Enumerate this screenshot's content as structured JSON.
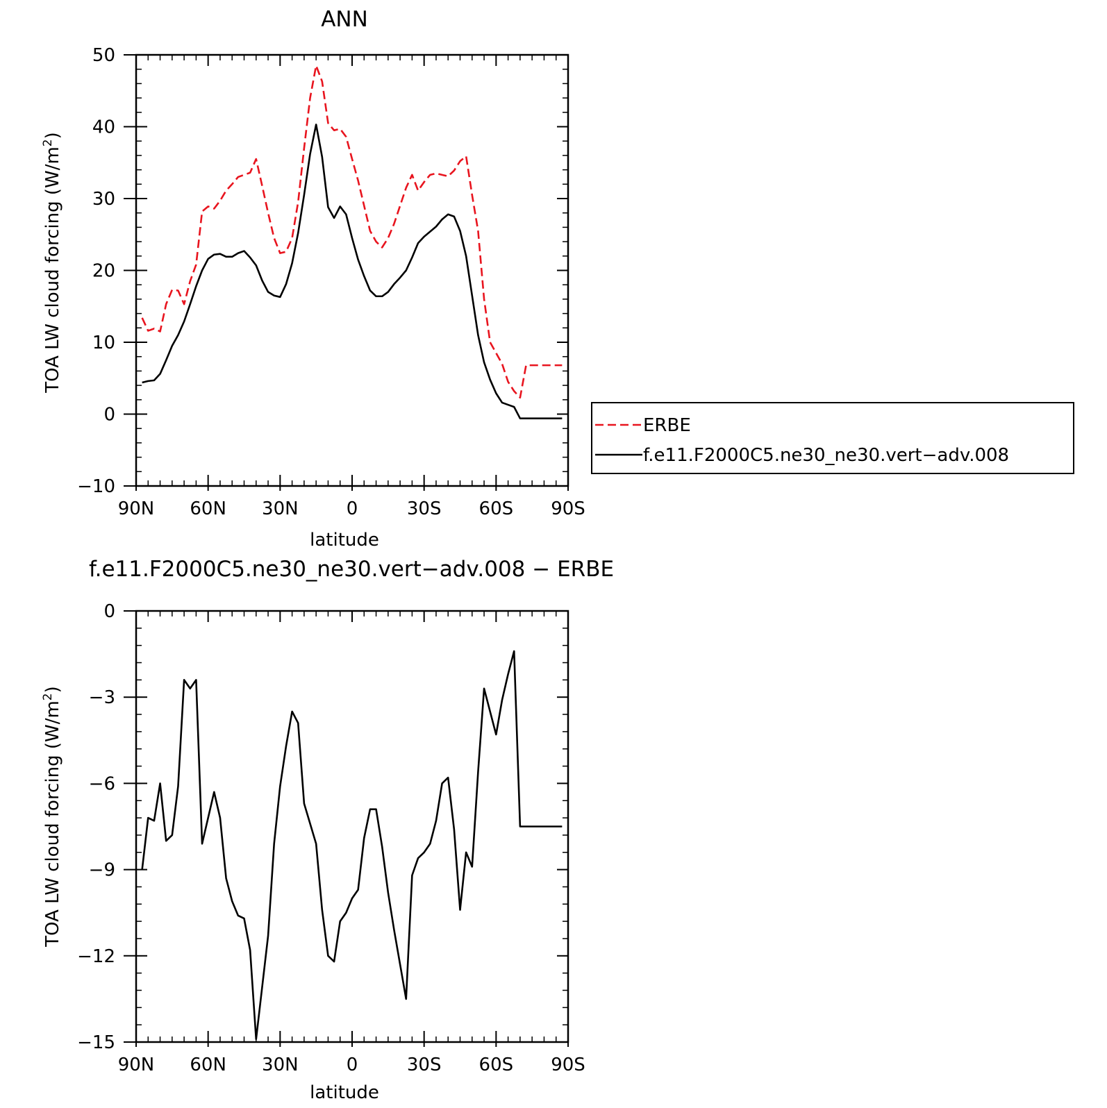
{
  "chart_data": [
    {
      "type": "line",
      "title": "ANN",
      "xlabel": "latitude",
      "ylabel": "TOA LW cloud forcing (W/m²)",
      "ylabel_parts": [
        "TOA LW cloud forcing (W/m",
        "2",
        ")"
      ],
      "xlim": [
        -90,
        90
      ],
      "ylim": [
        -10,
        50
      ],
      "xticks": [
        -90,
        -60,
        -30,
        0,
        30,
        60,
        90
      ],
      "xtick_labels": [
        "90N",
        "60N",
        "30N",
        "0",
        "30S",
        "60S",
        "90S"
      ],
      "yticks": [
        -10,
        0,
        10,
        20,
        30,
        40,
        50
      ],
      "ytick_labels": [
        "−10",
        "0",
        "10",
        "20",
        "30",
        "40",
        "50"
      ],
      "legend_position": "right",
      "series": [
        {
          "name": "ERBE",
          "color": "#e8141e",
          "dash": "dashed",
          "x": [
            -87.5,
            -85,
            -82.5,
            -80,
            -77.5,
            -75,
            -72.5,
            -70,
            -67.5,
            -65,
            -62.5,
            -60,
            -57.5,
            -55,
            -52.5,
            -50,
            -47.5,
            -45,
            -42.5,
            -40,
            -37.5,
            -35,
            -32.5,
            -30,
            -27.5,
            -25,
            -22.5,
            -20,
            -17.5,
            -15,
            -12.5,
            -10,
            -7.5,
            -5,
            -2.5,
            0,
            2.5,
            5,
            7.5,
            10,
            12.5,
            15,
            17.5,
            20,
            22.5,
            25,
            27.5,
            30,
            32.5,
            35,
            37.5,
            40,
            42.5,
            45,
            47.5,
            50,
            52.5,
            55,
            57.5,
            60,
            62.5,
            65,
            67.5,
            70,
            72.5,
            75,
            77.5,
            80,
            82.5,
            85,
            87.5
          ],
          "values": [
            13.4,
            11.6,
            11.9,
            11.5,
            15.3,
            17.3,
            17.2,
            15.3,
            18.5,
            20.8,
            28.2,
            28.9,
            28.6,
            29.7,
            31.1,
            32.0,
            33.0,
            33.3,
            33.6,
            35.5,
            31.8,
            28.0,
            24.5,
            22.4,
            22.6,
            24.5,
            29.5,
            37.0,
            44.0,
            48.5,
            46.3,
            40.5,
            39.5,
            39.7,
            38.6,
            35.5,
            32.5,
            29.0,
            25.5,
            24.0,
            23.2,
            24.5,
            26.5,
            29.0,
            31.5,
            33.3,
            31.1,
            32.3,
            33.3,
            33.5,
            33.3,
            33.1,
            33.9,
            35.2,
            35.9,
            30.5,
            25.5,
            16.0,
            10.0,
            8.5,
            7.0,
            4.5,
            3.2,
            2.3,
            6.8,
            6.8,
            6.8,
            6.8,
            6.8,
            6.8,
            6.8
          ]
        },
        {
          "name": "f.e11.F2000C5.ne30_ne30.vert−adv.008",
          "color": "#000000",
          "dash": "solid",
          "x": [
            -87.5,
            -85,
            -82.5,
            -80,
            -77.5,
            -75,
            -72.5,
            -70,
            -67.5,
            -65,
            -62.5,
            -60,
            -57.5,
            -55,
            -52.5,
            -50,
            -47.5,
            -45,
            -42.5,
            -40,
            -37.5,
            -35,
            -32.5,
            -30,
            -27.5,
            -25,
            -22.5,
            -20,
            -17.5,
            -15,
            -12.5,
            -10,
            -7.5,
            -5,
            -2.5,
            0,
            2.5,
            5,
            7.5,
            10,
            12.5,
            15,
            17.5,
            20,
            22.5,
            25,
            27.5,
            30,
            32.5,
            35,
            37.5,
            40,
            42.5,
            45,
            47.5,
            50,
            52.5,
            55,
            57.5,
            60,
            62.5,
            65,
            67.5,
            70,
            72.5,
            75,
            77.5,
            80,
            82.5,
            85,
            87.5
          ],
          "values": [
            4.4,
            4.6,
            4.7,
            5.6,
            7.5,
            9.5,
            11.0,
            12.9,
            15.3,
            17.8,
            20.0,
            21.6,
            22.2,
            22.3,
            21.9,
            21.9,
            22.4,
            22.7,
            21.8,
            20.7,
            18.6,
            17.0,
            16.5,
            16.3,
            18.1,
            21.0,
            25.2,
            30.5,
            36.2,
            40.3,
            35.8,
            28.8,
            27.3,
            28.9,
            27.8,
            24.5,
            21.5,
            19.2,
            17.2,
            16.4,
            16.4,
            17.0,
            18.1,
            19.0,
            20.0,
            21.8,
            23.8,
            24.7,
            25.4,
            26.1,
            27.1,
            27.8,
            27.5,
            25.5,
            22.0,
            16.5,
            11.0,
            7.2,
            4.8,
            2.9,
            1.6,
            1.3,
            1.0,
            -0.6,
            -0.6,
            -0.6,
            -0.6,
            -0.6,
            -0.6,
            -0.6,
            -0.6
          ]
        }
      ]
    },
    {
      "type": "line",
      "title": "f.e11.F2000C5.ne30_ne30.vert−adv.008 − ERBE",
      "xlabel": "latitude",
      "ylabel": "TOA LW cloud forcing (W/m²)",
      "ylabel_parts": [
        "TOA LW cloud forcing (W/m",
        "2",
        ")"
      ],
      "xlim": [
        -90,
        90
      ],
      "ylim": [
        -15,
        0
      ],
      "xticks": [
        -90,
        -60,
        -30,
        0,
        30,
        60,
        90
      ],
      "xtick_labels": [
        "90N",
        "60N",
        "30N",
        "0",
        "30S",
        "60S",
        "90S"
      ],
      "yticks": [
        -15,
        -12,
        -9,
        -6,
        -3,
        0
      ],
      "ytick_labels": [
        "−15",
        "−12",
        "−9",
        "−6",
        "−3",
        "0"
      ],
      "series": [
        {
          "color": "#000000",
          "dash": "solid",
          "x": [
            -87.5,
            -85,
            -82.5,
            -80,
            -77.5,
            -75,
            -72.5,
            -70,
            -67.5,
            -65,
            -62.5,
            -60,
            -57.5,
            -55,
            -52.5,
            -50,
            -47.5,
            -45,
            -42.5,
            -40,
            -37.5,
            -35,
            -32.5,
            -30,
            -27.5,
            -25,
            -22.5,
            -20,
            -17.5,
            -15,
            -12.5,
            -10,
            -7.5,
            -5,
            -2.5,
            0,
            2.5,
            5,
            7.5,
            10,
            12.5,
            15,
            17.5,
            20,
            22.5,
            25,
            27.5,
            30,
            32.5,
            35,
            37.5,
            40,
            42.5,
            45,
            47.5,
            50,
            52.5,
            55,
            57.5,
            60,
            62.5,
            65,
            67.5,
            70,
            72.5,
            75,
            77.5,
            80,
            82.5,
            85,
            87.5
          ],
          "values": [
            -9.0,
            -7.2,
            -7.3,
            -6.0,
            -8.0,
            -7.8,
            -6.1,
            -2.4,
            -2.7,
            -2.4,
            -8.1,
            -7.2,
            -6.3,
            -7.2,
            -9.3,
            -10.1,
            -10.6,
            -10.7,
            -11.8,
            -14.9,
            -13.1,
            -11.3,
            -8.1,
            -6.1,
            -4.7,
            -3.5,
            -3.9,
            -6.7,
            -7.4,
            -8.1,
            -10.4,
            -12.0,
            -12.2,
            -10.8,
            -10.5,
            -10.0,
            -9.7,
            -7.9,
            -6.9,
            -6.9,
            -8.2,
            -9.8,
            -11.1,
            -12.3,
            -13.5,
            -9.2,
            -8.6,
            -8.4,
            -8.1,
            -7.3,
            -6.0,
            -5.8,
            -7.6,
            -10.4,
            -8.4,
            -8.9,
            -5.6,
            -2.7,
            -3.5,
            -4.3,
            -3.1,
            -2.2,
            -1.4,
            -7.5,
            -7.5,
            -7.5,
            -7.5,
            -7.5,
            -7.5,
            -7.5,
            -7.5
          ]
        }
      ]
    }
  ]
}
